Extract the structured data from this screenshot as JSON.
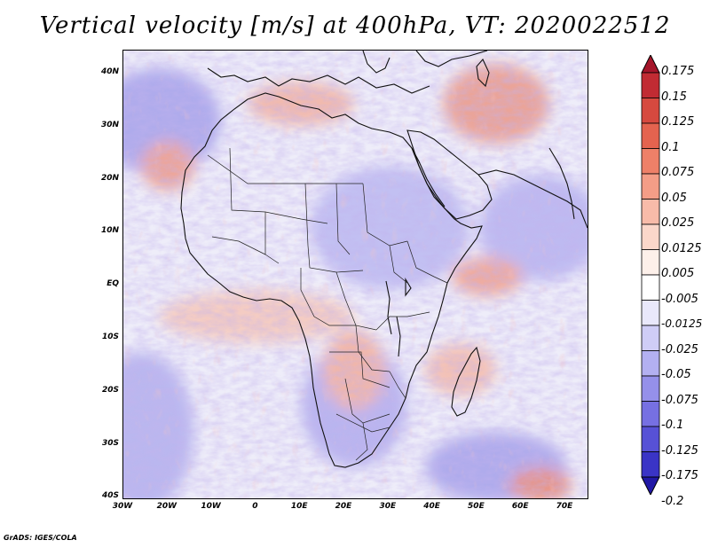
{
  "title": "Vertical velocity [m/s] at 400hPa, VT: 2020022512",
  "footer": "GrADS: IGES/COLA",
  "lat_ticks": [
    "40N",
    "30N",
    "20N",
    "10N",
    "EQ",
    "10S",
    "20S",
    "30S",
    "40S"
  ],
  "lon_ticks": [
    "30W",
    "20W",
    "10W",
    "0",
    "10E",
    "20E",
    "30E",
    "40E",
    "50E",
    "60E",
    "70E"
  ],
  "colorbar": {
    "labels": [
      "0.175",
      "0.15",
      "0.125",
      "0.1",
      "0.075",
      "0.05",
      "0.025",
      "0.0125",
      "0.005",
      "-0.005",
      "-0.0125",
      "-0.025",
      "-0.05",
      "-0.075",
      "-0.1",
      "-0.125",
      "-0.175",
      "-0.2"
    ],
    "colors": [
      "#a5152a",
      "#c12b33",
      "#d6493f",
      "#e4634f",
      "#ee8068",
      "#f49d87",
      "#f8bba9",
      "#fbd7ca",
      "#fdf0ea",
      "#ffffff",
      "#e9e8fb",
      "#cfcdf6",
      "#b3b0f1",
      "#9590ea",
      "#7670e2",
      "#5751d6",
      "#3a34c6",
      "#2118a6"
    ]
  },
  "map": {
    "lon_range": [
      -30,
      75
    ],
    "lat_range": [
      -40,
      45
    ],
    "field": "vertical velocity",
    "level": "400hPa",
    "valid_time": "2020022512"
  }
}
